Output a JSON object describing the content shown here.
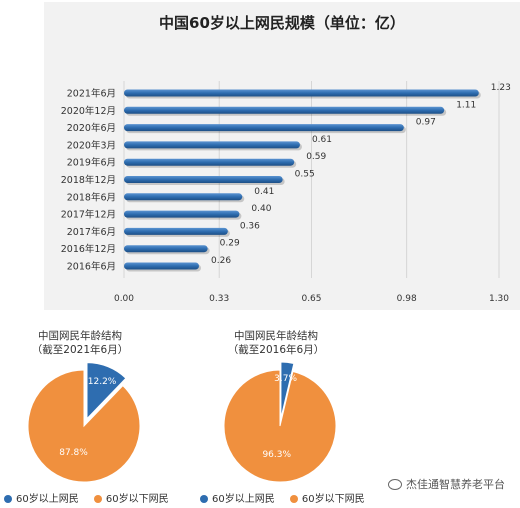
{
  "chart_data": [
    {
      "type": "bar",
      "orientation": "horizontal",
      "title": "中国60岁以上网民规模（单位：亿）",
      "categories": [
        "2021年6月",
        "2020年12月",
        "2020年6月",
        "2020年3月",
        "2019年6月",
        "2018年12月",
        "2018年6月",
        "2017年12月",
        "2017年6月",
        "2016年12月",
        "2016年6月"
      ],
      "values": [
        1.23,
        1.11,
        0.97,
        0.61,
        0.59,
        0.55,
        0.41,
        0.4,
        0.36,
        0.29,
        0.26
      ],
      "value_labels": [
        "1.23",
        "1.11",
        "0.97",
        "0.61",
        "0.59",
        "0.55",
        "0.41",
        "0.40",
        "0.36",
        "0.29",
        "0.26"
      ],
      "xlim": [
        0,
        1.3
      ],
      "x_ticks": [
        "0.00",
        "0.33",
        "0.65",
        "0.98",
        "1.30"
      ],
      "color": "#2e6db0",
      "grid": true
    },
    {
      "type": "pie",
      "title": "中国网民年龄结构",
      "subtitle": "（截至2021年6月）",
      "labels": [
        "60岁以上网民",
        "60岁以下网民"
      ],
      "values": [
        12.2,
        87.8
      ],
      "value_labels": [
        "12.2%",
        "87.8%"
      ],
      "colors": [
        "#2e6db0",
        "#f0903e"
      ]
    },
    {
      "type": "pie",
      "title": "中国网民年龄结构",
      "subtitle": "（截至2016年6月）",
      "labels": [
        "60岁以上网民",
        "60岁以下网民"
      ],
      "values": [
        3.7,
        96.3
      ],
      "value_labels": [
        "3.7%",
        "96.3%"
      ],
      "colors": [
        "#2e6db0",
        "#f0903e"
      ]
    }
  ],
  "watermark": "杰佳通智慧养老平台"
}
